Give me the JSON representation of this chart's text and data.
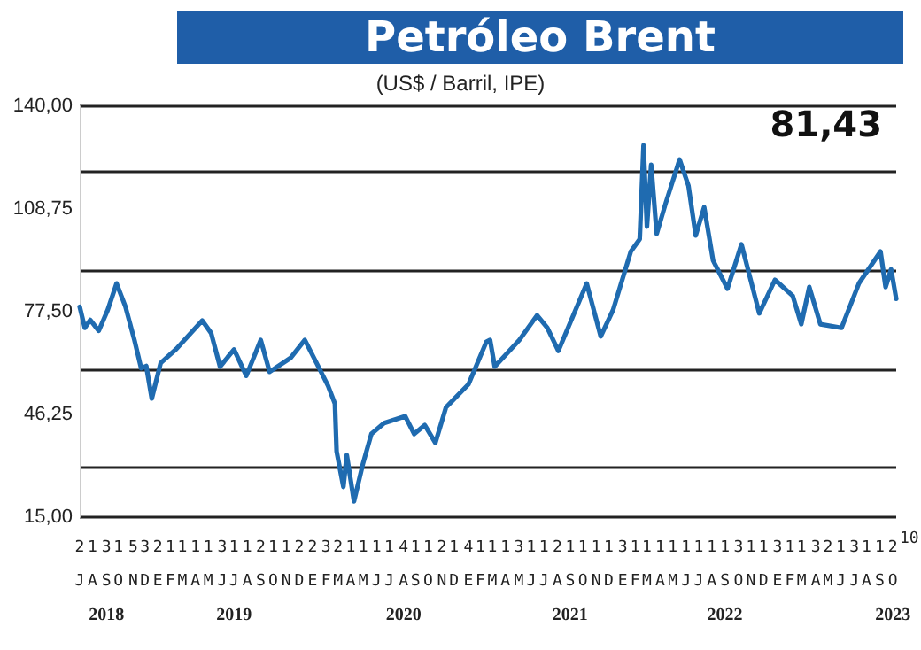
{
  "chart_data": {
    "type": "line",
    "title": "Petróleo Brent",
    "subtitle": "(US$ / Barril, IPE)",
    "annotations": [
      "81,43",
      "10"
    ],
    "x": [
      "2018-07-02",
      "2018-07-14",
      "2018-07-27",
      "2018-08-16",
      "2018-09-06",
      "2018-09-27",
      "2018-10-18",
      "2018-11-08",
      "2018-11-24",
      "2018-12-06",
      "2018-12-19",
      "2019-01-09",
      "2019-02-15",
      "2019-04-17",
      "2019-05-08",
      "2019-05-29",
      "2019-07-01",
      "2019-07-30",
      "2019-09-02",
      "2019-09-23",
      "2019-11-12",
      "2019-12-15",
      "2020-01-18",
      "2020-02-08",
      "2020-02-24",
      "2020-02-28",
      "2020-03-15",
      "2020-03-23",
      "2020-04-09",
      "2020-04-30",
      "2020-05-20",
      "2020-06-19",
      "2020-08-08",
      "2020-08-29",
      "2020-09-23",
      "2020-10-18",
      "2020-11-12",
      "2021-01-04",
      "2021-02-15",
      "2021-02-24",
      "2021-03-07",
      "2021-05-04",
      "2021-06-15",
      "2021-07-09",
      "2021-08-04",
      "2021-10-10",
      "2021-11-12",
      "2021-12-11",
      "2022-01-22",
      "2022-02-12",
      "2022-02-21",
      "2022-03-01",
      "2022-03-11",
      "2022-03-24",
      "2022-04-14",
      "2022-05-17",
      "2022-06-07",
      "2022-06-24",
      "2022-07-14",
      "2022-08-04",
      "2022-09-07",
      "2022-10-10",
      "2022-11-21",
      "2022-12-28",
      "2023-02-08",
      "2023-02-28",
      "2023-03-19",
      "2023-04-14",
      "2023-06-03",
      "2023-07-14",
      "2023-09-03",
      "2023-09-15",
      "2023-09-28",
      "2023-10-10"
    ],
    "series": [
      {
        "color": "#1f6bb0",
        "values": [
          79.0,
          72.6,
          75,
          71.7,
          78,
          86.1,
          79,
          68.9,
          60.3,
          61,
          51.1,
          61.9,
          66.2,
          74.8,
          71,
          60.8,
          66,
          58,
          68.9,
          59.2,
          63.5,
          68.9,
          60.3,
          54.9,
          49.5,
          35,
          24.2,
          33.9,
          19.8,
          31.2,
          40.3,
          43.6,
          45.7,
          40.3,
          43,
          37.6,
          48.4,
          55.4,
          68.3,
          68.9,
          60.8,
          68.9,
          76.4,
          72.6,
          65.6,
          86.1,
          70,
          78,
          95.8,
          99.6,
          128.1,
          103.4,
          122.2,
          101.2,
          110.4,
          123.8,
          115.8,
          100.7,
          109.3,
          93.1,
          84.5,
          98,
          77,
          87.2,
          82.3,
          73.7,
          85,
          73.7,
          72.6,
          86.1,
          95.8,
          85,
          90.4,
          81.43
        ]
      }
    ],
    "ylim": [
      15,
      140
    ],
    "yticks": [
      {
        "value": 15,
        "label": "15,00"
      },
      {
        "value": 46.25,
        "label": "46,25"
      },
      {
        "value": 77.5,
        "label": "77,50"
      },
      {
        "value": 108.75,
        "label": "108,75"
      },
      {
        "value": 140,
        "label": "140,00"
      }
    ],
    "xlim": [
      "2018-07-02",
      "2023-10-10"
    ],
    "xticks": [
      {
        "value": "2018-07-02",
        "label": "2\nJ"
      },
      {
        "value": "2018-08-01",
        "label": "1\nA"
      },
      {
        "value": "2018-09-03",
        "label": "3\nS\n2018"
      },
      {
        "value": "2018-10-01",
        "label": "1\nO"
      },
      {
        "value": "2018-11-05",
        "label": "5\nN"
      },
      {
        "value": "2018-12-03",
        "label": "3\nD"
      },
      {
        "value": "2019-01-02",
        "label": "2\nE"
      },
      {
        "value": "2019-02-01",
        "label": "1\nF"
      },
      {
        "value": "2019-03-01",
        "label": "1\nM"
      },
      {
        "value": "2019-04-01",
        "label": "1\nA"
      },
      {
        "value": "2019-05-01",
        "label": "1\nM"
      },
      {
        "value": "2019-06-03",
        "label": "3\nJ"
      },
      {
        "value": "2019-07-01",
        "label": "1\nJ\n2019"
      },
      {
        "value": "2019-08-01",
        "label": "1\nA"
      },
      {
        "value": "2019-09-02",
        "label": "2\nS"
      },
      {
        "value": "2019-10-01",
        "label": "1\nO"
      },
      {
        "value": "2019-11-01",
        "label": "1\nN"
      },
      {
        "value": "2019-12-02",
        "label": "2\nD"
      },
      {
        "value": "2020-01-02",
        "label": "2\nE"
      },
      {
        "value": "2020-02-03",
        "label": "3\nF"
      },
      {
        "value": "2020-03-02",
        "label": "2\nM"
      },
      {
        "value": "2020-04-01",
        "label": "1\nA"
      },
      {
        "value": "2020-05-01",
        "label": "1\nM"
      },
      {
        "value": "2020-06-01",
        "label": "1\nJ"
      },
      {
        "value": "2020-07-01",
        "label": "1\nJ"
      },
      {
        "value": "2020-08-04",
        "label": "4\nA\n2020"
      },
      {
        "value": "2020-09-01",
        "label": "1\nS"
      },
      {
        "value": "2020-10-01",
        "label": "1\nO"
      },
      {
        "value": "2020-11-02",
        "label": "2\nN"
      },
      {
        "value": "2020-12-01",
        "label": "1\nD"
      },
      {
        "value": "2021-01-04",
        "label": "4\nE"
      },
      {
        "value": "2021-02-01",
        "label": "1\nF"
      },
      {
        "value": "2021-03-01",
        "label": "1\nM"
      },
      {
        "value": "2021-04-01",
        "label": "1\nA"
      },
      {
        "value": "2021-05-03",
        "label": "3\nM"
      },
      {
        "value": "2021-06-01",
        "label": "1\nJ"
      },
      {
        "value": "2021-07-01",
        "label": "1\nJ"
      },
      {
        "value": "2021-08-02",
        "label": "2\nA"
      },
      {
        "value": "2021-09-01",
        "label": "1\nS\n2021"
      },
      {
        "value": "2021-10-01",
        "label": "1\nO"
      },
      {
        "value": "2021-11-01",
        "label": "1\nN"
      },
      {
        "value": "2021-12-01",
        "label": "1\nD"
      },
      {
        "value": "2022-01-03",
        "label": "3\nE"
      },
      {
        "value": "2022-02-01",
        "label": "1\nF"
      },
      {
        "value": "2022-03-01",
        "label": "1\nM"
      },
      {
        "value": "2022-04-01",
        "label": "1\nA"
      },
      {
        "value": "2022-05-01",
        "label": "1\nM"
      },
      {
        "value": "2022-06-01",
        "label": "1\nJ"
      },
      {
        "value": "2022-07-01",
        "label": "1\nJ"
      },
      {
        "value": "2022-08-01",
        "label": "1\nA"
      },
      {
        "value": "2022-09-01",
        "label": "1\nS\n2022"
      },
      {
        "value": "2022-10-03",
        "label": "3\nO"
      },
      {
        "value": "2022-11-01",
        "label": "1\nN"
      },
      {
        "value": "2022-12-01",
        "label": "1\nD"
      },
      {
        "value": "2023-01-03",
        "label": "3\nE"
      },
      {
        "value": "2023-02-01",
        "label": "1\nF"
      },
      {
        "value": "2023-03-01",
        "label": "1\nM"
      },
      {
        "value": "2023-04-03",
        "label": "3\nA"
      },
      {
        "value": "2023-05-02",
        "label": "2\nM"
      },
      {
        "value": "2023-06-01",
        "label": "1\nJ"
      },
      {
        "value": "2023-07-03",
        "label": "3\nJ"
      },
      {
        "value": "2023-08-01",
        "label": "1\nA"
      },
      {
        "value": "2023-09-01",
        "label": "1\nS"
      },
      {
        "value": "2023-10-02",
        "label": "2\nO\n2023"
      }
    ],
    "grid": "y",
    "marker": "none",
    "line_style": "solid"
  }
}
